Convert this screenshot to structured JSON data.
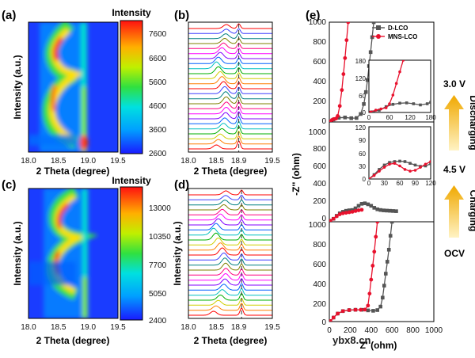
{
  "watermark": "ybx8.cn",
  "chart_data": [
    {
      "id": "a",
      "type": "heatmap",
      "panel_label": "(a)",
      "xlabel": "2 Theta (degree)",
      "ylabel": "Intensity (a.u.)",
      "x_ticks": [
        "18.0",
        "18.5",
        "19.0",
        "19.5"
      ],
      "xlim": [
        18.0,
        19.5
      ],
      "colorbar_title": "Intensity",
      "colorbar_ticks": [
        "7600",
        "6600",
        "5600",
        "4600",
        "3600",
        "2600"
      ],
      "colorbar_range": [
        2600,
        8000
      ]
    },
    {
      "id": "b",
      "type": "line",
      "panel_label": "(b)",
      "xlabel": "2 Theta (degree)",
      "ylabel": "",
      "x_ticks": [
        "18.0",
        "18.5",
        "18.9",
        "19.5"
      ],
      "xlim": [
        18.0,
        19.5
      ],
      "reference_line_x": 18.9,
      "series_count": 25
    },
    {
      "id": "c",
      "type": "heatmap",
      "panel_label": "(c)",
      "xlabel": "2 Theta (degree)",
      "ylabel": "Intensity (a.u.)",
      "x_ticks": [
        "18.0",
        "18.5",
        "19.0",
        "19.5"
      ],
      "xlim": [
        18.0,
        19.5
      ],
      "colorbar_title": "Intensity",
      "colorbar_ticks": [
        "13000",
        "10350",
        "7700",
        "5050",
        "2400"
      ],
      "colorbar_range": [
        2400,
        14000
      ]
    },
    {
      "id": "d",
      "type": "line",
      "panel_label": "(d)",
      "xlabel": "2 Theta (degree)",
      "ylabel": "Intensity (a.u.)",
      "x_ticks": [
        "18.0",
        "18.5",
        "18.9",
        "19.5"
      ],
      "xlim": [
        18.0,
        19.5
      ],
      "reference_line_x": 18.95,
      "series_count": 25
    },
    {
      "id": "e",
      "type": "scatter",
      "panel_label": "(e)",
      "xlabel": "Z' (ohm)",
      "ylabel": "-Z'' (ohm)",
      "legend": [
        "D-LCO",
        "MNS-LCO"
      ],
      "legend_placement": "top-left",
      "series_colors": {
        "D-LCO": "#555555",
        "MNS-LCO": "#e8112d"
      },
      "right_labels": {
        "top_state": "3.0 V",
        "discharging": "Discharging",
        "mid_state": "4.5 V",
        "charging": "Charging",
        "bottom_state": "OCV"
      },
      "subplots": [
        {
          "name": "3.0 V",
          "y_ticks": [
            "1000",
            "800",
            "600",
            "400",
            "200",
            "0"
          ],
          "ylim": [
            0,
            1000
          ],
          "xlim": [
            0,
            1000
          ],
          "inset": {
            "x_ticks": [
              "0",
              "60",
              "120",
              "180"
            ],
            "y_ticks": [
              "180",
              "120",
              "60",
              "0"
            ],
            "xlim": [
              0,
              180
            ],
            "ylim": [
              0,
              180
            ]
          },
          "series": [
            {
              "name": "D-LCO",
              "x": [
                5,
                40,
                90,
                150,
                210,
                260,
                300,
                330,
                350,
                365,
                380,
                395,
                410,
                425
              ],
              "y": [
                5,
                25,
                42,
                45,
                38,
                40,
                80,
                180,
                300,
                420,
                560,
                700,
                850,
                1000
              ]
            },
            {
              "name": "MNS-LCO",
              "x": [
                5,
                25,
                45,
                65,
                80,
                100,
                120,
                135,
                150,
                165,
                180
              ],
              "y": [
                5,
                20,
                30,
                35,
                60,
                160,
                320,
                480,
                640,
                820,
                1000
              ]
            }
          ],
          "inset_series": [
            {
              "name": "D-LCO",
              "x": [
                10,
                30,
                50,
                70,
                90,
                110,
                130,
                150,
                170,
                180
              ],
              "y": [
                2,
                8,
                20,
                28,
                32,
                33,
                30,
                26,
                30,
                35
              ]
            },
            {
              "name": "MNS-LCO",
              "x": [
                5,
                20,
                35,
                50,
                60,
                70,
                80,
                90,
                100
              ],
              "y": [
                2,
                8,
                12,
                16,
                30,
                60,
                100,
                140,
                180
              ]
            }
          ]
        },
        {
          "name": "4.5 V",
          "y_ticks": [
            "1000",
            "800",
            "600",
            "400",
            "200",
            "0"
          ],
          "ylim": [
            0,
            1000
          ],
          "xlim": [
            0,
            1000
          ],
          "inset": {
            "x_ticks": [
              "0",
              "30",
              "60",
              "90",
              "120"
            ],
            "y_ticks": [
              "120",
              "90",
              "60",
              "30",
              "0"
            ],
            "xlim": [
              0,
              120
            ],
            "ylim": [
              0,
              120
            ]
          },
          "series": [
            {
              "name": "D-LCO",
              "x": [
                10,
                40,
                70,
                100,
                130,
                160,
                190,
                220,
                250,
                280,
                310,
                340,
                370,
                400,
                430,
                460,
                490,
                520,
                550,
                580,
                610,
                640
              ],
              "y": [
                10,
                30,
                60,
                85,
                100,
                110,
                115,
                118,
                135,
                160,
                180,
                185,
                175,
                160,
                140,
                125,
                118,
                114,
                112,
                110,
                108,
                106
              ]
            },
            {
              "name": "MNS-LCO",
              "x": [
                10,
                40,
                70,
                100,
                130,
                160,
                190,
                220,
                250,
                280,
                310
              ],
              "y": [
                10,
                30,
                55,
                75,
                85,
                90,
                95,
                100,
                108,
                115,
                120
              ]
            }
          ],
          "inset_series": [
            {
              "name": "D-LCO",
              "x": [
                0,
                10,
                20,
                30,
                40,
                50,
                60,
                70,
                80,
                90,
                100,
                110,
                120
              ],
              "y": [
                0,
                10,
                22,
                32,
                38,
                40,
                41,
                40,
                36,
                32,
                29,
                30,
                35
              ]
            },
            {
              "name": "MNS-LCO",
              "x": [
                0,
                10,
                20,
                30,
                40,
                50,
                60,
                70,
                80,
                90,
                100,
                110,
                120
              ],
              "y": [
                0,
                8,
                18,
                27,
                34,
                36,
                30,
                22,
                18,
                20,
                27,
                34,
                40
              ]
            }
          ]
        },
        {
          "name": "OCV",
          "y_ticks": [
            "1000",
            "800",
            "600",
            "400",
            "200",
            "0"
          ],
          "ylim": [
            0,
            1000
          ],
          "xlim": [
            0,
            1000
          ],
          "x_ticks": [
            "0",
            "200",
            "400",
            "600",
            "800",
            "1000"
          ],
          "series": [
            {
              "name": "D-LCO",
              "x": [
                10,
                40,
                80,
                130,
                190,
                250,
                310,
                370,
                420,
                460,
                490,
                510,
                525,
                540,
                555,
                570,
                585,
                600
              ],
              "y": [
                5,
                40,
                80,
                105,
                115,
                118,
                118,
                112,
                108,
                115,
                150,
                240,
                360,
                480,
                600,
                720,
                860,
                1000
              ]
            },
            {
              "name": "MNS-LCO",
              "x": [
                10,
                40,
                80,
                130,
                190,
                250,
                300,
                340,
                370,
                385,
                400,
                415,
                430,
                445,
                460
              ],
              "y": [
                5,
                40,
                80,
                105,
                115,
                118,
                118,
                120,
                160,
                280,
                420,
                560,
                700,
                850,
                1000
              ]
            }
          ]
        }
      ]
    }
  ]
}
